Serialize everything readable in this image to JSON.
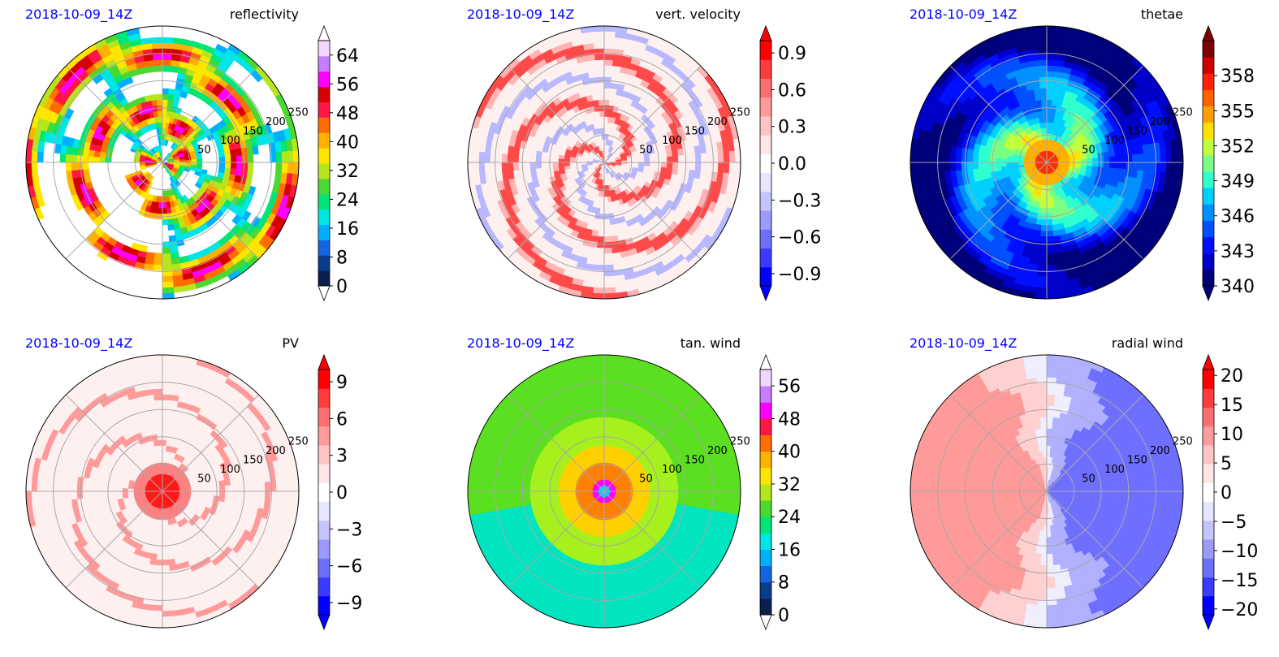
{
  "figure": {
    "panels": [
      {
        "time": "2018-10-09_14Z",
        "variable": "reflectivity",
        "cb_ticks": [
          "0",
          "8",
          "16",
          "24",
          "32",
          "40",
          "48",
          "56",
          "64"
        ],
        "cb_min": 0,
        "cb_max": 68,
        "cb_extend": "both-white"
      },
      {
        "time": "2018-10-09_14Z",
        "variable": "vert. velocity",
        "cb_ticks": [
          "−0.9",
          "−0.6",
          "−0.3",
          "0.0",
          "0.3",
          "0.6",
          "0.9"
        ],
        "cb_min": -1.0,
        "cb_max": 1.0,
        "cb_extend": "both"
      },
      {
        "time": "2018-10-09_14Z",
        "variable": "thetae",
        "cb_ticks": [
          "340",
          "343",
          "346",
          "349",
          "352",
          "355",
          "358"
        ],
        "cb_min": 340,
        "cb_max": 361,
        "cb_extend": "both"
      },
      {
        "time": "2018-10-09_14Z",
        "variable": "PV",
        "cb_ticks": [
          "−9",
          "−6",
          "−3",
          "0",
          "3",
          "6",
          "9"
        ],
        "cb_min": -10,
        "cb_max": 10,
        "cb_extend": "both"
      },
      {
        "time": "2018-10-09_14Z",
        "variable": "tan. wind",
        "cb_ticks": [
          "0",
          "8",
          "16",
          "24",
          "32",
          "40",
          "48",
          "56"
        ],
        "cb_min": 0,
        "cb_max": 60,
        "cb_extend": "both-white"
      },
      {
        "time": "2018-10-09_14Z",
        "variable": "radial wind",
        "cb_ticks": [
          "−20",
          "−15",
          "−10",
          "−5",
          "0",
          "5",
          "10",
          "15",
          "20"
        ],
        "cb_min": -21,
        "cb_max": 21,
        "cb_extend": "both"
      }
    ],
    "range_ring_labels": [
      "50",
      "100",
      "150",
      "200",
      "250"
    ]
  },
  "chart_data": [
    {
      "type": "heatmap",
      "title": "reflectivity",
      "subtitle": "2018-10-09_14Z",
      "projection": "polar",
      "radial_ticks": [
        50,
        100,
        150,
        200,
        250
      ],
      "colorbar": {
        "ticks": [
          0,
          8,
          16,
          24,
          32,
          40,
          48,
          56,
          64
        ],
        "range": [
          0,
          68
        ],
        "colormap": "radar reflectivity"
      }
    },
    {
      "type": "heatmap",
      "title": "vert. velocity",
      "subtitle": "2018-10-09_14Z",
      "projection": "polar",
      "radial_ticks": [
        50,
        100,
        150,
        200,
        250
      ],
      "colorbar": {
        "ticks": [
          -0.9,
          -0.6,
          -0.3,
          0.0,
          0.3,
          0.6,
          0.9
        ],
        "range": [
          -1.0,
          1.0
        ],
        "colormap": "blue-white-red"
      }
    },
    {
      "type": "heatmap",
      "title": "thetae",
      "subtitle": "2018-10-09_14Z",
      "projection": "polar",
      "radial_ticks": [
        50,
        100,
        150,
        200,
        250
      ],
      "colorbar": {
        "ticks": [
          340,
          343,
          346,
          349,
          352,
          355,
          358
        ],
        "range": [
          340,
          361
        ],
        "colormap": "jet"
      }
    },
    {
      "type": "heatmap",
      "title": "PV",
      "subtitle": "2018-10-09_14Z",
      "projection": "polar",
      "radial_ticks": [
        50,
        100,
        150,
        200,
        250
      ],
      "colorbar": {
        "ticks": [
          -9,
          -6,
          -3,
          0,
          3,
          6,
          9
        ],
        "range": [
          -10,
          10
        ],
        "colormap": "blue-white-red"
      }
    },
    {
      "type": "heatmap",
      "title": "tan. wind",
      "subtitle": "2018-10-09_14Z",
      "projection": "polar",
      "radial_ticks": [
        50,
        100,
        150,
        200,
        250
      ],
      "colorbar": {
        "ticks": [
          0,
          8,
          16,
          24,
          32,
          40,
          48,
          56
        ],
        "range": [
          0,
          60
        ],
        "colormap": "wind speed"
      }
    },
    {
      "type": "heatmap",
      "title": "radial wind",
      "subtitle": "2018-10-09_14Z",
      "projection": "polar",
      "radial_ticks": [
        50,
        100,
        150,
        200,
        250
      ],
      "colorbar": {
        "ticks": [
          -20,
          -15,
          -10,
          -5,
          0,
          5,
          10,
          15,
          20
        ],
        "range": [
          -21,
          21
        ],
        "colormap": "blue-white-red"
      }
    }
  ]
}
